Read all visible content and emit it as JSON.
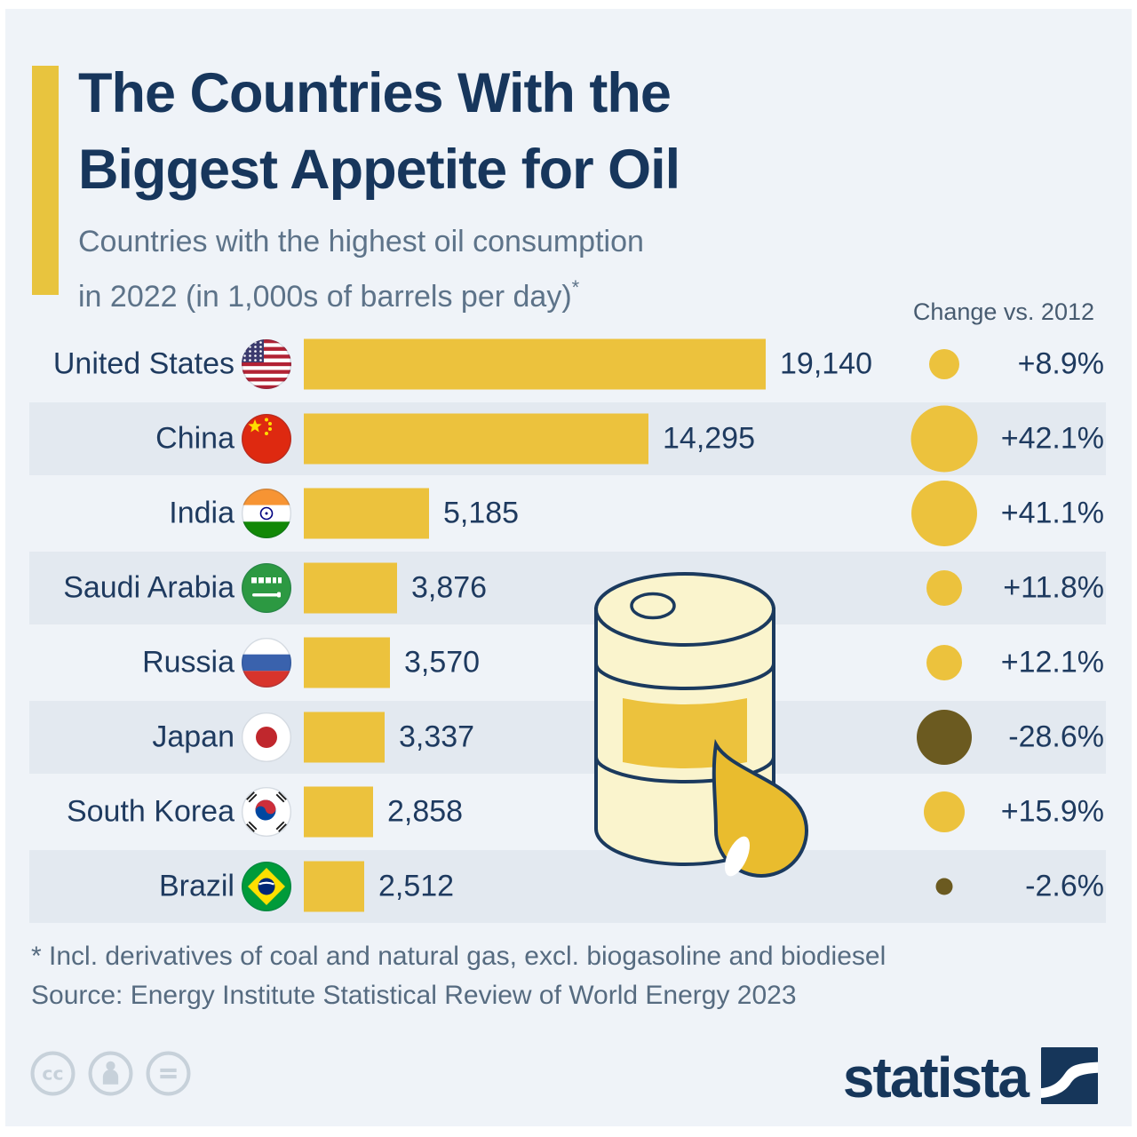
{
  "header": {
    "title_line1": "The Countries With the",
    "title_line2": "Biggest Appetite for Oil",
    "subtitle_line1": "Countries with the highest oil consumption",
    "subtitle_line2": "in 2022 (in 1,000s of barrels per day)",
    "subtitle_asterisk": "*"
  },
  "chart_data": {
    "type": "bar",
    "orientation": "horizontal",
    "title": "The Countries With the Biggest Appetite for Oil",
    "subtitle": "Countries with the highest oil consumption in 2022 (in 1,000s of barrels per day)*",
    "unit": "1,000s of barrels per day",
    "change_header": "Change vs. 2012",
    "x_max": 19140,
    "grid": false,
    "legend": false,
    "rows": [
      {
        "country": "United States",
        "flag": "us",
        "value": 19140,
        "value_label": "19,140",
        "change_pct": 8.9,
        "change_label": "+8.9%"
      },
      {
        "country": "China",
        "flag": "cn",
        "value": 14295,
        "value_label": "14,295",
        "change_pct": 42.1,
        "change_label": "+42.1%"
      },
      {
        "country": "India",
        "flag": "in",
        "value": 5185,
        "value_label": "5,185",
        "change_pct": 41.1,
        "change_label": "+41.1%"
      },
      {
        "country": "Saudi Arabia",
        "flag": "sa",
        "value": 3876,
        "value_label": "3,876",
        "change_pct": 11.8,
        "change_label": "+11.8%"
      },
      {
        "country": "Russia",
        "flag": "ru",
        "value": 3570,
        "value_label": "3,570",
        "change_pct": 12.1,
        "change_label": "+12.1%"
      },
      {
        "country": "Japan",
        "flag": "jp",
        "value": 3337,
        "value_label": "3,337",
        "change_pct": -28.6,
        "change_label": "-28.6%"
      },
      {
        "country": "South Korea",
        "flag": "kr",
        "value": 2858,
        "value_label": "2,858",
        "change_pct": 15.9,
        "change_label": "+15.9%"
      },
      {
        "country": "Brazil",
        "flag": "br",
        "value": 2512,
        "value_label": "2,512",
        "change_pct": -2.6,
        "change_label": "-2.6%"
      }
    ]
  },
  "footer": {
    "note": "* Incl. derivatives of coal and natural gas, excl. biogasoline and biodiesel",
    "source": "Source: Energy Institute Statistical Review of World Energy 2023",
    "license_icons": [
      "cc-icon",
      "attribution-person-icon",
      "no-derivatives-equals-icon"
    ]
  },
  "branding": {
    "logo_text": "statista"
  },
  "colors": {
    "background": "#eff3f8",
    "row_band": "#e3e9f0",
    "bar_yellow": "#ecc23d",
    "positive_circle": "#ecc23d",
    "negative_circle": "#6b5a20",
    "title_navy": "#17365c",
    "text_navy": "#1e3a5f",
    "muted_text": "#5d7389"
  }
}
